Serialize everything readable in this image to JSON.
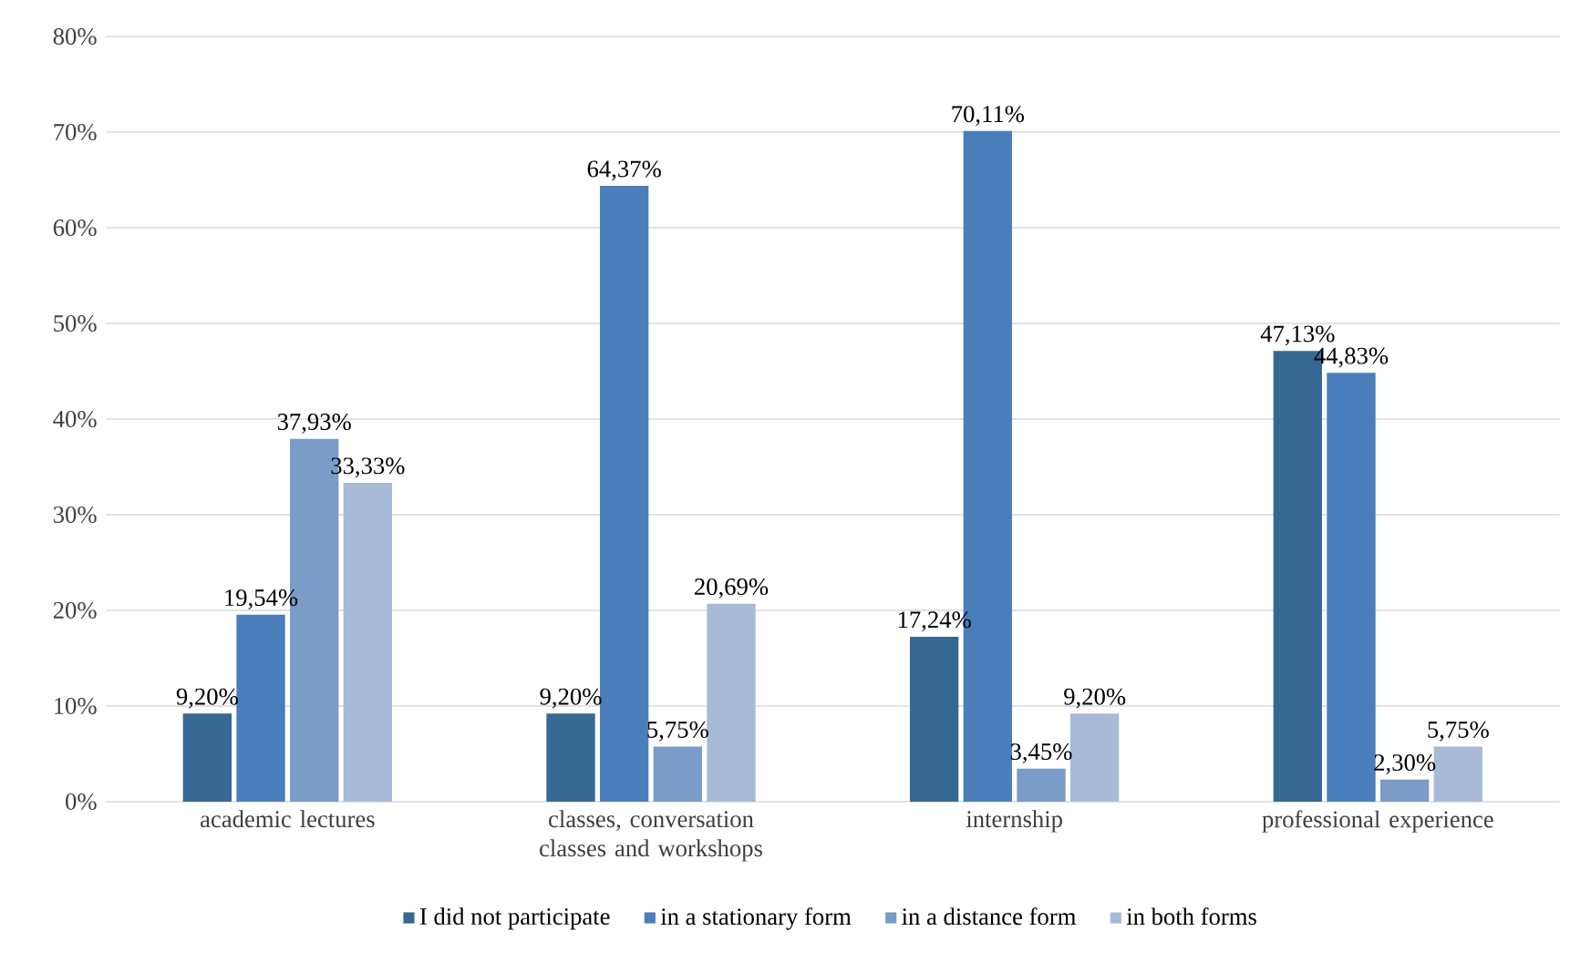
{
  "chart_data": {
    "type": "bar",
    "categories": [
      "academic lectures",
      "classes, conversation classes and workshops",
      "internship",
      "professional experience"
    ],
    "series": [
      {
        "name": "I did not participate",
        "color": "#376893",
        "values": [
          9.2,
          9.2,
          17.24,
          47.13
        ],
        "value_labels": [
          "9,20%",
          "9,20%",
          "17,24%",
          "47,13%"
        ]
      },
      {
        "name": "in a stationary form",
        "color": "#4a7ebb",
        "values": [
          19.54,
          64.37,
          70.11,
          44.83
        ],
        "value_labels": [
          "19,54%",
          "64,37%",
          "70,11%",
          "44,83%"
        ]
      },
      {
        "name": "in a distance form",
        "color": "#7b9bc8",
        "values": [
          37.93,
          5.75,
          3.45,
          2.3
        ],
        "value_labels": [
          "37,93%",
          "5,75%",
          "3,45%",
          "2,30%"
        ]
      },
      {
        "name": "in both forms",
        "color": "#a7bad7",
        "values": [
          33.33,
          20.69,
          9.2,
          5.75
        ],
        "value_labels": [
          "33,33%",
          "20,69%",
          "9,20%",
          "5,75%"
        ]
      }
    ],
    "ylim": [
      0,
      80
    ],
    "yticks": [
      {
        "value": 0,
        "label": "0%"
      },
      {
        "value": 10,
        "label": "10%"
      },
      {
        "value": 20,
        "label": "20%"
      },
      {
        "value": 30,
        "label": "30%"
      },
      {
        "value": 40,
        "label": "40%"
      },
      {
        "value": 50,
        "label": "50%"
      },
      {
        "value": 60,
        "label": "60%"
      },
      {
        "value": 70,
        "label": "70%"
      },
      {
        "value": 80,
        "label": "80%"
      }
    ],
    "grid": "y",
    "legend": "bottom"
  }
}
